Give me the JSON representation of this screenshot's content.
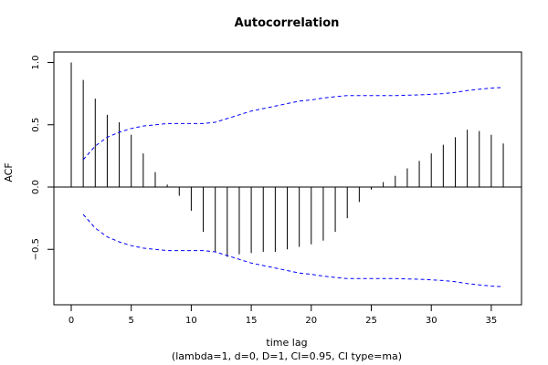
{
  "chart_data": {
    "type": "bar",
    "title": "Autocorrelation",
    "xlabel": "time lag",
    "subtitle": "(lambda=1, d=0, D=1, CI=0.95, CI type=ma)",
    "ylabel": "ACF",
    "xlim": [
      0,
      36
    ],
    "ylim": [
      -0.85,
      1.0
    ],
    "x_ticks": [
      0,
      5,
      10,
      15,
      20,
      25,
      30,
      35
    ],
    "y_ticks": [
      -0.5,
      0.0,
      0.5,
      1.0
    ],
    "x_tick_labels": [
      "0",
      "5",
      "10",
      "15",
      "20",
      "25",
      "30",
      "35"
    ],
    "y_tick_labels": [
      "−0.5",
      "0.0",
      "0.5",
      "1.0"
    ],
    "series": [
      {
        "values": [
          1.0,
          0.86,
          0.71,
          0.58,
          0.52,
          0.42,
          0.27,
          0.12,
          0.02,
          -0.07,
          -0.19,
          -0.36,
          -0.52,
          -0.56,
          -0.54,
          -0.53,
          -0.52,
          -0.52,
          -0.5,
          -0.48,
          -0.46,
          -0.43,
          -0.36,
          -0.25,
          -0.12,
          -0.02,
          0.04,
          0.09,
          0.15,
          0.21,
          0.27,
          0.34,
          0.4,
          0.46,
          0.45,
          0.42,
          0.35
        ]
      }
    ],
    "ci_upper": [
      null,
      0.22,
      0.33,
      0.4,
      0.44,
      0.47,
      0.49,
      0.5,
      0.51,
      0.51,
      0.51,
      0.51,
      0.52,
      0.55,
      0.58,
      0.61,
      0.63,
      0.65,
      0.67,
      0.69,
      0.7,
      0.715,
      0.725,
      0.735,
      0.735,
      0.735,
      0.735,
      0.735,
      0.738,
      0.74,
      0.745,
      0.75,
      0.76,
      0.775,
      0.785,
      0.795,
      0.8
    ],
    "colors": {
      "bars": "#000000",
      "ci": "#0000ff",
      "zero_line": "#000000"
    },
    "grid": false
  }
}
